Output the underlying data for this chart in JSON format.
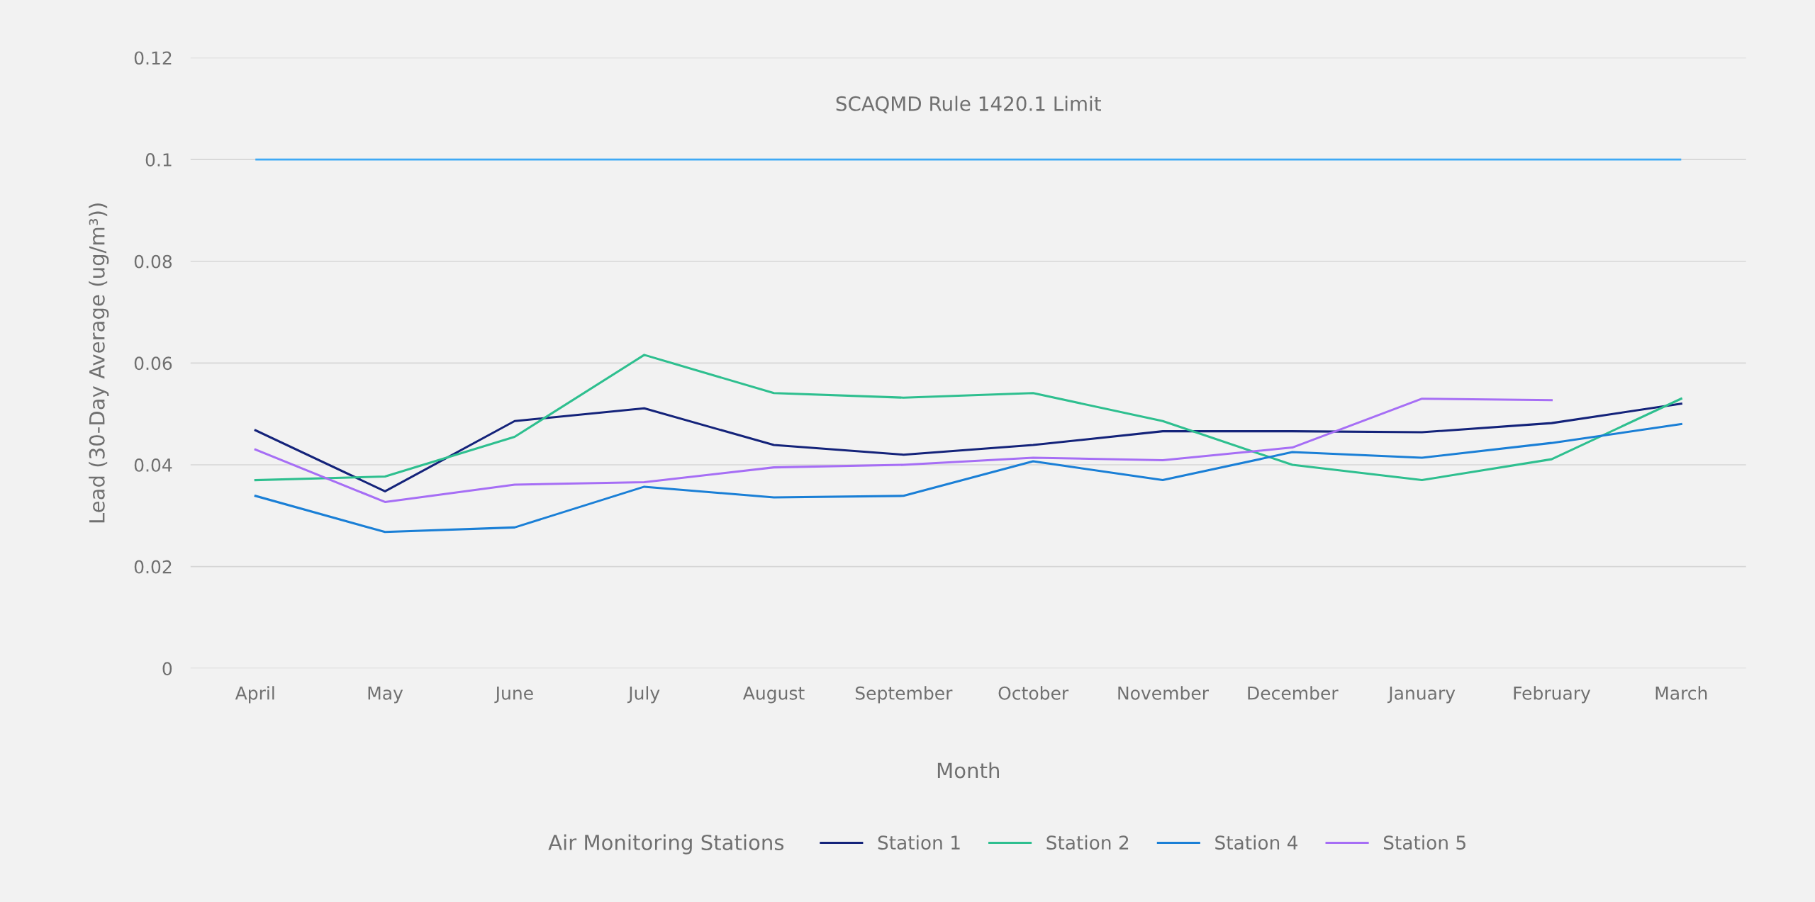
{
  "chart_data": {
    "type": "line",
    "xlabel": "Month",
    "ylabel": "Lead (30-Day Average (ug/m³))",
    "legend_title": "Air Monitoring Stations",
    "categories": [
      "April",
      "May",
      "June",
      "July",
      "August",
      "September",
      "October",
      "November",
      "December",
      "January",
      "February",
      "March"
    ],
    "series": [
      {
        "name": "Station 1",
        "color": "#14237a",
        "values": [
          0.0468,
          0.0348,
          0.0486,
          0.0511,
          0.0439,
          0.042,
          0.0439,
          0.0466,
          0.0466,
          0.0464,
          0.0482,
          0.052
        ]
      },
      {
        "name": "Station 2",
        "color": "#2ebf8f",
        "values": [
          0.037,
          0.0377,
          0.0455,
          0.0616,
          0.0541,
          0.0532,
          0.0541,
          0.0486,
          0.04,
          0.037,
          0.0411,
          0.053
        ]
      },
      {
        "name": "Station 4",
        "color": "#1a7fd6",
        "values": [
          0.0339,
          0.0268,
          0.0277,
          0.0357,
          0.0336,
          0.0339,
          0.0407,
          0.037,
          0.0425,
          0.0414,
          0.0443,
          0.048
        ]
      },
      {
        "name": "Station 5",
        "color": "#a66ef5",
        "values": [
          0.043,
          0.0327,
          0.0361,
          0.0366,
          0.0395,
          0.04,
          0.0414,
          0.0409,
          0.0434,
          0.053,
          0.0527,
          null
        ]
      }
    ],
    "ref_lines": [
      {
        "axis": "y",
        "value": 0.1,
        "label": "SCAQMD Rule 1420.1 Limit",
        "color": "#3fa9f5",
        "line_style": "solid"
      }
    ],
    "ylim": [
      0,
      0.12
    ],
    "yticks": [
      0,
      0.02,
      0.04,
      0.06,
      0.08,
      0.1,
      0.12
    ],
    "grid": "y",
    "legend": "bottom",
    "marker": "none",
    "line_style": "solid"
  }
}
